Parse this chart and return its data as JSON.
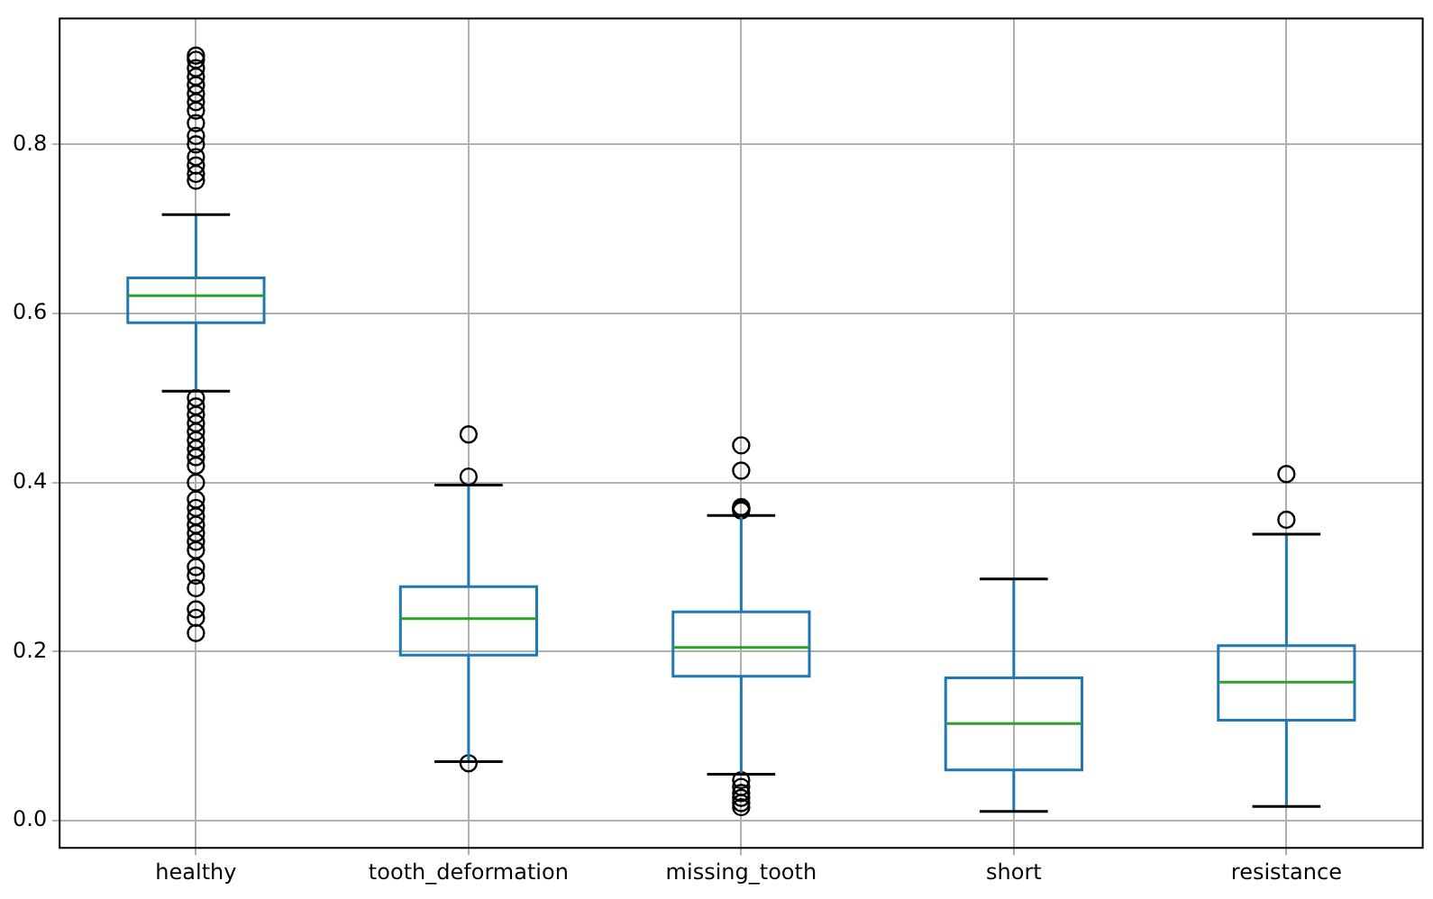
{
  "chart_data": {
    "type": "box",
    "categories": [
      "healthy",
      "tooth_deformation",
      "missing_tooth",
      "short",
      "resistance"
    ],
    "series": [
      {
        "color": "#1f77b4",
        "boxes": [
          {
            "low": 0.508,
            "q1": 0.589,
            "median": 0.621,
            "q3": 0.642,
            "high": 0.717,
            "outliers": [
              0.757,
              0.765,
              0.775,
              0.785,
              0.8,
              0.81,
              0.825,
              0.84,
              0.85,
              0.86,
              0.87,
              0.88,
              0.89,
              0.9,
              0.905,
              0.222,
              0.24,
              0.25,
              0.275,
              0.29,
              0.3,
              0.32,
              0.33,
              0.34,
              0.35,
              0.36,
              0.37,
              0.38,
              0.4,
              0.42,
              0.43,
              0.44,
              0.45,
              0.46,
              0.47,
              0.48,
              0.49,
              0.5
            ]
          },
          {
            "low": 0.07,
            "q1": 0.196,
            "median": 0.239,
            "q3": 0.277,
            "high": 0.397,
            "outliers": [
              0.457,
              0.407,
              0.068
            ]
          },
          {
            "low": 0.055,
            "q1": 0.171,
            "median": 0.205,
            "q3": 0.247,
            "high": 0.361,
            "outliers": [
              0.444,
              0.414,
              0.371,
              0.369,
              0.367,
              0.048,
              0.04,
              0.033,
              0.027,
              0.021,
              0.016
            ]
          },
          {
            "low": 0.011,
            "q1": 0.06,
            "median": 0.115,
            "q3": 0.169,
            "high": 0.286
          },
          {
            "low": 0.017,
            "q1": 0.119,
            "median": 0.164,
            "q3": 0.207,
            "high": 0.339,
            "outliers": [
              0.41,
              0.356
            ]
          }
        ]
      }
    ],
    "ylim": [
      -0.032,
      0.949
    ],
    "yticks": [
      {
        "value": 0,
        "label": "0.0"
      },
      {
        "value": 0.2,
        "label": "0.2"
      },
      {
        "value": 0.4,
        "label": "0.4"
      },
      {
        "value": 0.6,
        "label": "0.6"
      },
      {
        "value": 0.8,
        "label": "0.8"
      }
    ],
    "grid": true
  }
}
